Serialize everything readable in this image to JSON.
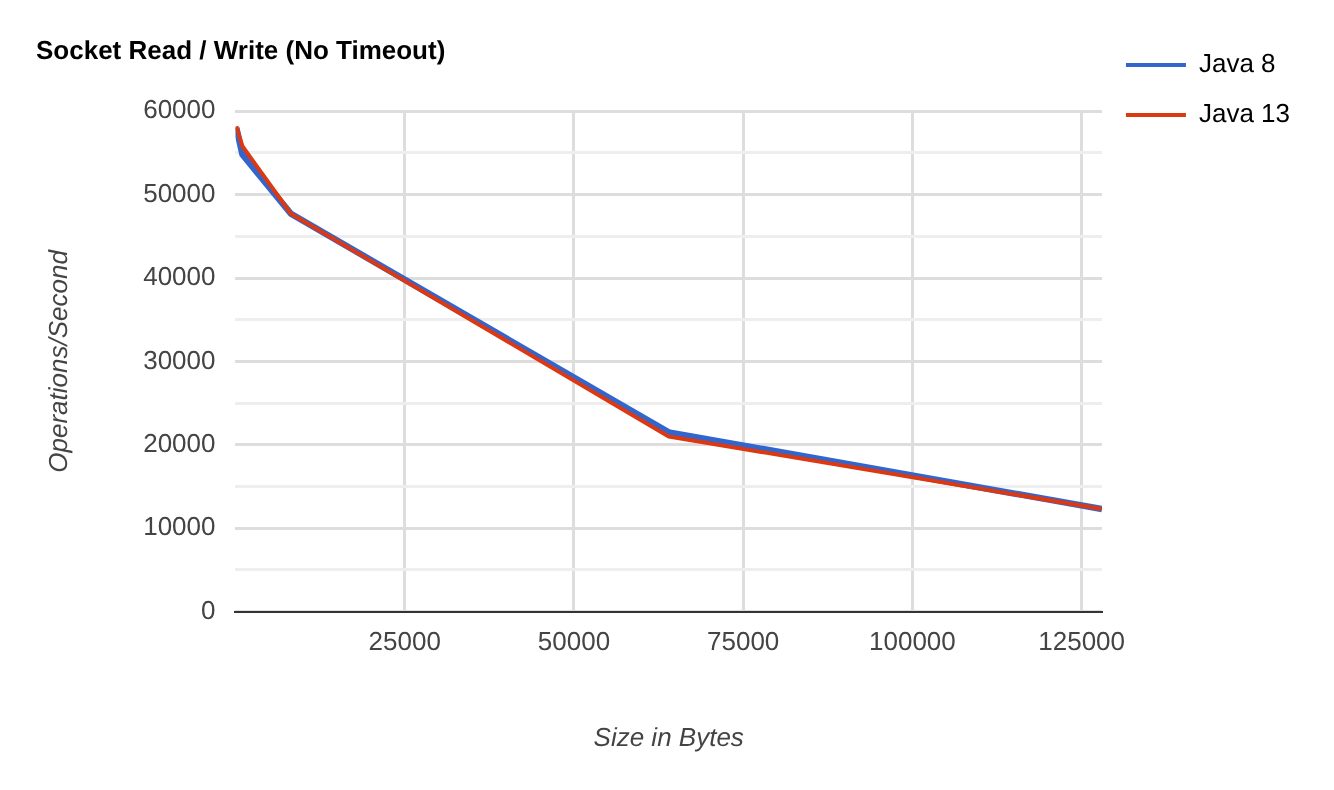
{
  "chart_data": {
    "type": "line",
    "title": "Socket Read / Write (No Timeout)",
    "xlabel": "Size in Bytes",
    "ylabel": "Operations/Second",
    "x": [
      128,
      1024,
      8192,
      64000,
      128000
    ],
    "series": [
      {
        "name": "Java 8",
        "color": "#3366cc",
        "values": [
          58000,
          54800,
          47700,
          21500,
          12300
        ]
      },
      {
        "name": "Java 13",
        "color": "#dc3912",
        "values": [
          58200,
          55800,
          47700,
          21000,
          12300
        ]
      }
    ],
    "xlim": [
      0,
      128000
    ],
    "xticks": [
      25000,
      50000,
      75000,
      100000,
      125000
    ],
    "ylim": [
      0,
      60000
    ],
    "yticks": [
      0,
      {
        "value": 5000,
        "label": null
      },
      10000,
      {
        "value": 15000,
        "label": null
      },
      20000,
      {
        "value": 25000,
        "label": null
      },
      30000,
      {
        "value": 35000,
        "label": null
      },
      40000,
      {
        "value": 45000,
        "label": null
      },
      50000,
      {
        "value": 55000,
        "label": null
      },
      60000
    ],
    "grid": true,
    "legend": "top right",
    "marker": "none",
    "line_style": "solid"
  }
}
